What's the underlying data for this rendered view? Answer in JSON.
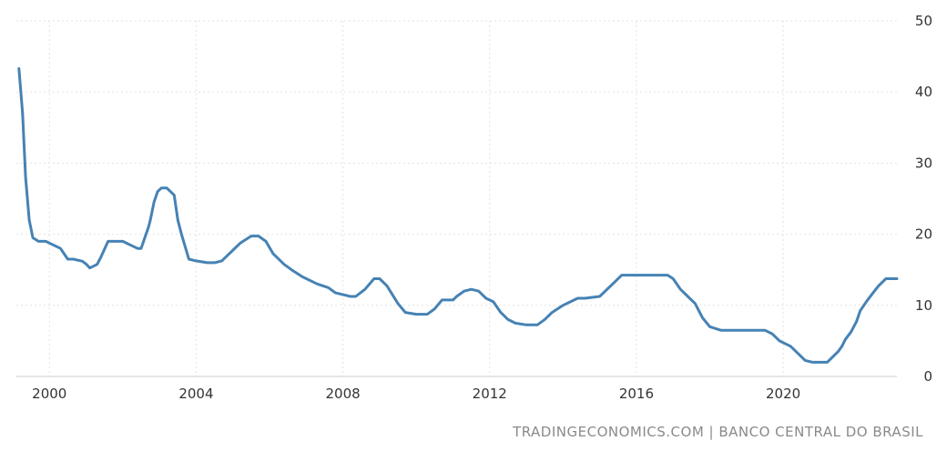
{
  "source": "TRADINGECONOMICS.COM | BANCO CENTRAL DO BRASIL",
  "chart_data": {
    "type": "line",
    "title": "",
    "xlabel": "",
    "ylabel": "",
    "xlim": [
      1999.1,
      2023.1
    ],
    "ylim": [
      0,
      50
    ],
    "x_ticks": [
      2000,
      2004,
      2008,
      2012,
      2016,
      2020
    ],
    "x_tick_labels": [
      "2000",
      "2004",
      "2008",
      "2012",
      "2016",
      "2020"
    ],
    "y_ticks": [
      0,
      10,
      20,
      30,
      40,
      50
    ],
    "y_tick_labels": [
      "0",
      "10",
      "20",
      "30",
      "40",
      "50"
    ],
    "grid": true,
    "y_axis_position": "right",
    "line_color": "#4682b4",
    "series": [
      {
        "x": [
          1999.17,
          1999.27,
          1999.35,
          1999.45,
          1999.55,
          1999.7,
          1999.9,
          2000.3,
          2000.5,
          2000.6,
          2000.65,
          2000.9,
          2001.0,
          2001.1,
          2001.3,
          2001.4,
          2001.6,
          2001.8,
          2002.0,
          2002.1,
          2002.2,
          2002.4,
          2002.5,
          2002.6,
          2002.7,
          2002.75,
          2002.85,
          2002.95,
          2003.05,
          2003.2,
          2003.4,
          2003.5,
          2003.6,
          2003.8,
          2004.0,
          2004.3,
          2004.5,
          2004.7,
          2004.9,
          2005.2,
          2005.5,
          2005.7,
          2005.9,
          2006.1,
          2006.4,
          2006.6,
          2006.9,
          2007.3,
          2007.6,
          2007.8,
          2008.2,
          2008.35,
          2008.6,
          2008.85,
          2009.0,
          2009.2,
          2009.5,
          2009.7,
          2010.0,
          2010.3,
          2010.5,
          2010.7,
          2011.0,
          2011.1,
          2011.3,
          2011.5,
          2011.7,
          2011.9,
          2012.1,
          2012.3,
          2012.5,
          2012.7,
          2013.0,
          2013.3,
          2013.5,
          2013.7,
          2014.0,
          2014.2,
          2014.4,
          2014.6,
          2015.0,
          2015.2,
          2015.4,
          2015.6,
          2016.0,
          2016.5,
          2016.85,
          2017.0,
          2017.2,
          2017.4,
          2017.6,
          2017.8,
          2018.0,
          2018.3,
          2018.5,
          2019.0,
          2019.5,
          2019.7,
          2019.9,
          2020.1,
          2020.2,
          2020.4,
          2020.6,
          2020.8,
          2021.0,
          2021.2,
          2021.35,
          2021.5,
          2021.6,
          2021.7,
          2021.85,
          2022.0,
          2022.1,
          2022.3,
          2022.45,
          2022.6,
          2022.8,
          2023.1
        ],
        "values": [
          43.3,
          37.0,
          28.0,
          22.0,
          19.5,
          19.0,
          19.0,
          18.0,
          16.5,
          16.5,
          16.5,
          16.2,
          15.8,
          15.25,
          15.75,
          16.75,
          19.0,
          19.0,
          19.0,
          18.75,
          18.5,
          18.0,
          18.0,
          19.5,
          21.0,
          22.0,
          24.5,
          26.0,
          26.5,
          26.5,
          25.5,
          22.0,
          20.0,
          16.5,
          16.25,
          16.0,
          16.0,
          16.25,
          17.25,
          18.75,
          19.75,
          19.75,
          19.0,
          17.25,
          15.75,
          15.0,
          14.0,
          13.0,
          12.5,
          11.75,
          11.25,
          11.25,
          12.25,
          13.75,
          13.75,
          12.75,
          10.25,
          9.0,
          8.75,
          8.75,
          9.5,
          10.75,
          10.75,
          11.25,
          12.0,
          12.25,
          12.0,
          11.0,
          10.5,
          9.0,
          8.0,
          7.5,
          7.25,
          7.25,
          8.0,
          9.0,
          10.0,
          10.5,
          11.0,
          11.0,
          11.25,
          12.25,
          13.25,
          14.25,
          14.25,
          14.25,
          14.25,
          13.75,
          12.25,
          11.25,
          10.25,
          8.25,
          7.0,
          6.5,
          6.5,
          6.5,
          6.5,
          6.0,
          5.0,
          4.5,
          4.25,
          3.25,
          2.25,
          2.0,
          2.0,
          2.0,
          2.75,
          3.5,
          4.25,
          5.25,
          6.25,
          7.75,
          9.25,
          10.75,
          11.75,
          12.75,
          13.75,
          13.75
        ]
      }
    ]
  }
}
